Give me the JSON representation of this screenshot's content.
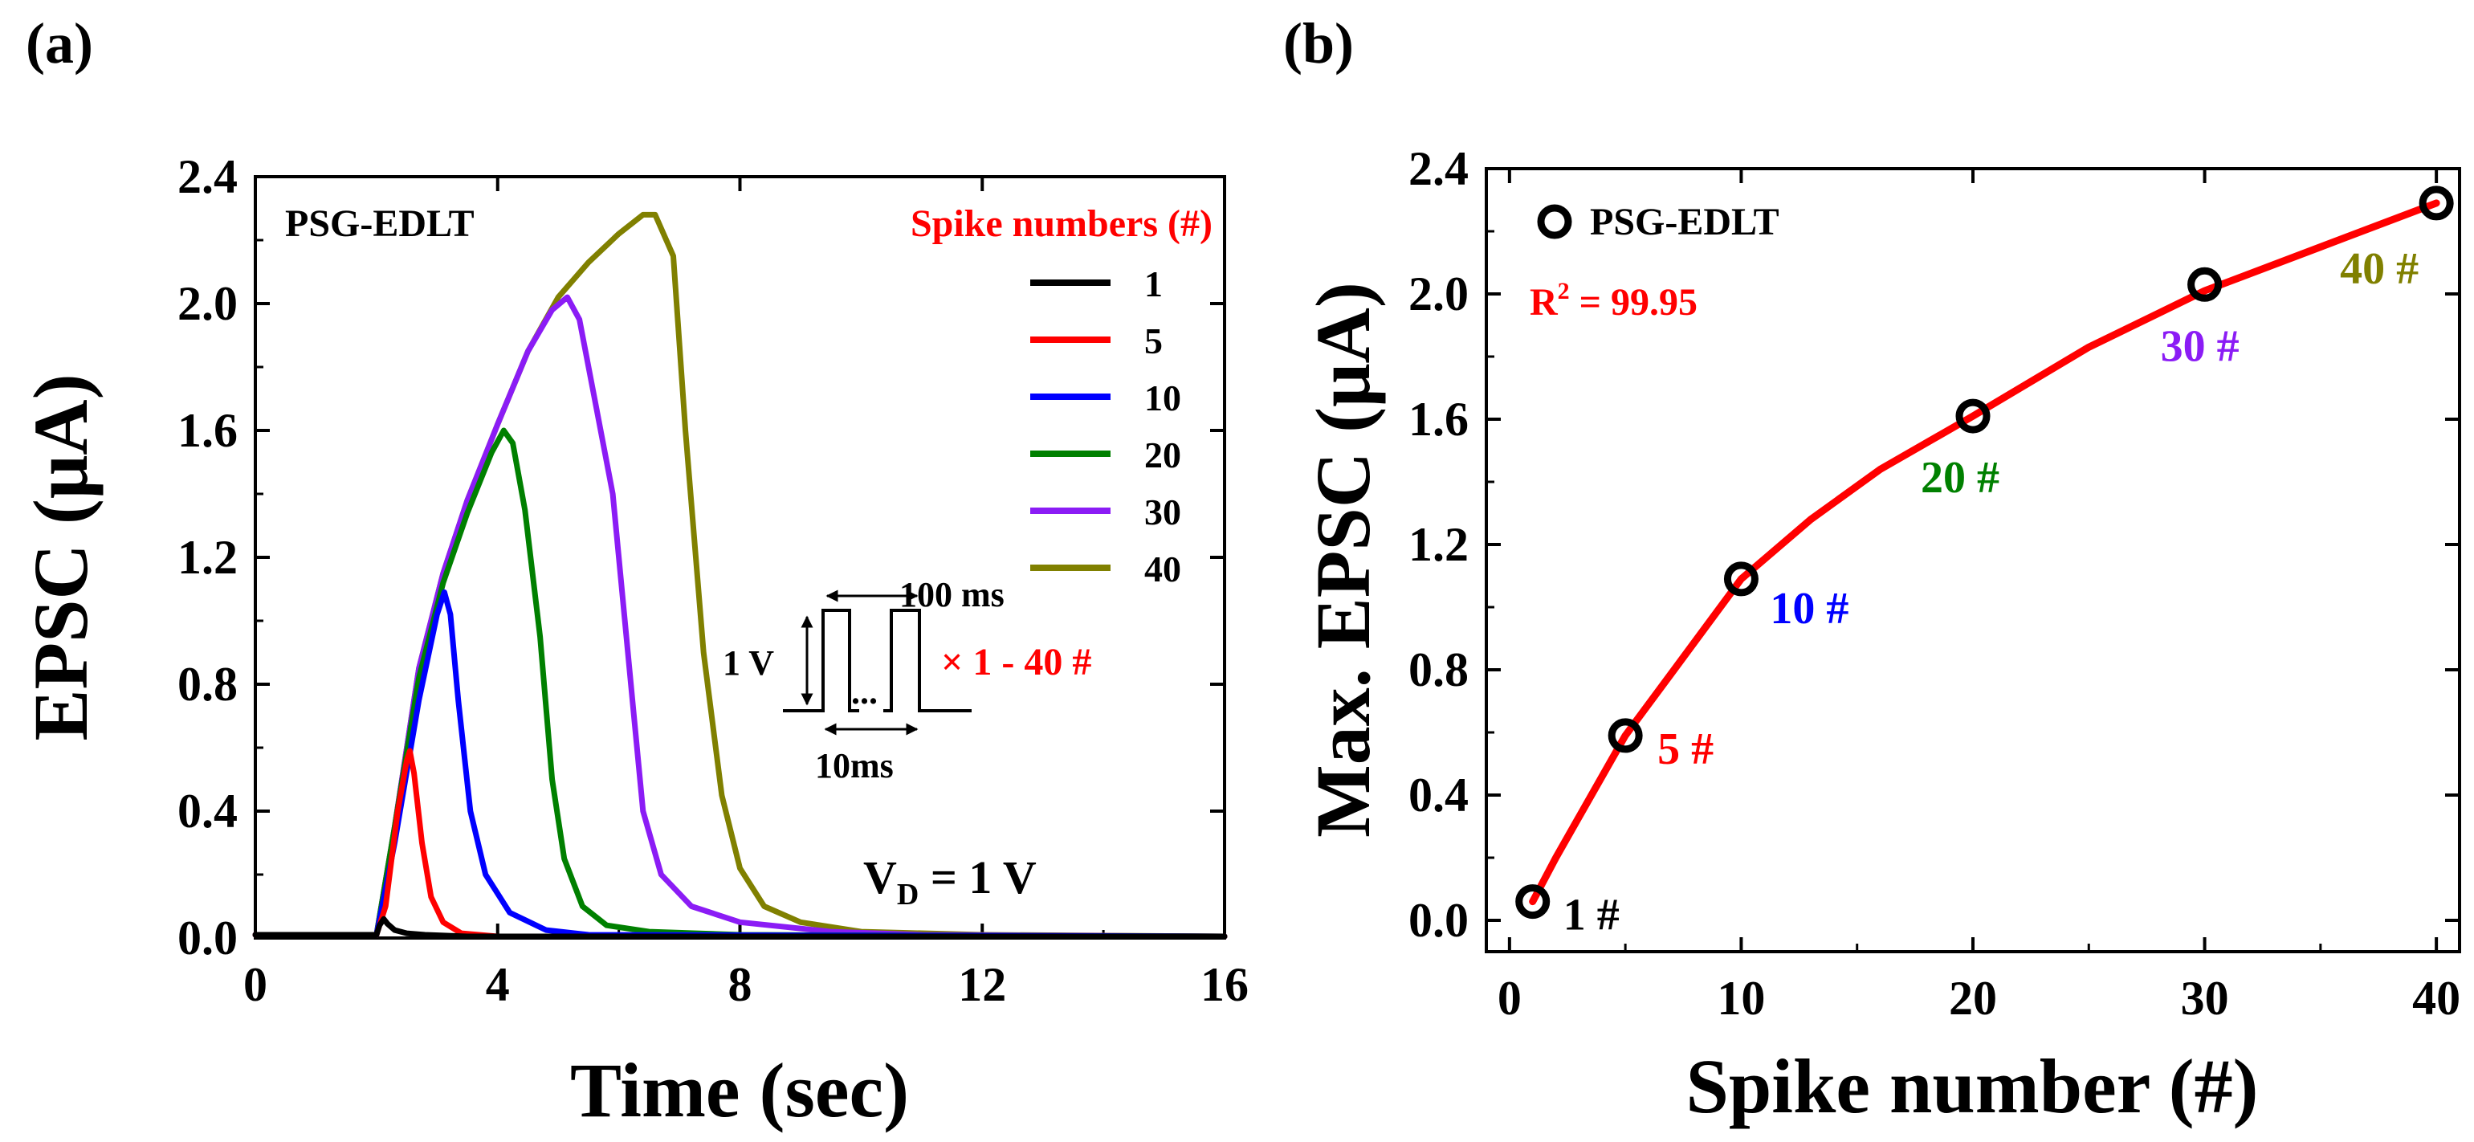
{
  "panels": [
    {
      "label": "(a)"
    },
    {
      "label": "(b)"
    }
  ],
  "colors": {
    "black": "#000000",
    "red": "#ff0000",
    "blue": "#0000ff",
    "green": "#008000",
    "purple": "#8b1cf5",
    "olive": "#808000"
  },
  "inset": {
    "pulse_width": "100 ms",
    "amplitude": "1 V",
    "ellipsis": "...",
    "interval": "10ms",
    "repeat": "× 1 - 40 #"
  },
  "chart_data": [
    {
      "id": "a",
      "type": "line",
      "title": "",
      "xlabel": "Time (sec)",
      "ylabel": "EPSC (μA)",
      "xlim": [
        0,
        16
      ],
      "ylim": [
        0,
        2.4
      ],
      "xticks": [
        0,
        4,
        8,
        12,
        16
      ],
      "xtick_labels": [
        "0",
        "4",
        "8",
        "12",
        "16"
      ],
      "yticks": [
        0,
        0.4,
        0.8,
        1.2,
        1.6,
        2.0,
        2.4
      ],
      "ytick_labels": [
        "0.0",
        "0.4",
        "0.8",
        "1.2",
        "1.6",
        "2.0",
        "2.4"
      ],
      "grid": false,
      "device_label": "PSG-EDLT",
      "condition_label": {
        "main": "V",
        "sub": "D",
        "rest": " = 1 V"
      },
      "legend_title": "Spike numbers (#)",
      "legend_position": "top-right",
      "series": [
        {
          "name": "1",
          "color": "#000000",
          "x": [
            0,
            2.0,
            2.05,
            2.12,
            2.18,
            2.3,
            2.5,
            2.8,
            3.5,
            16
          ],
          "y": [
            0.01,
            0.01,
            0.04,
            0.06,
            0.045,
            0.025,
            0.015,
            0.01,
            0.005,
            0.005
          ]
        },
        {
          "name": "5",
          "color": "#ff0000",
          "x": [
            0,
            2.0,
            2.15,
            2.35,
            2.5,
            2.55,
            2.62,
            2.75,
            2.9,
            3.1,
            3.4,
            4.0,
            16
          ],
          "y": [
            0.01,
            0.01,
            0.1,
            0.4,
            0.56,
            0.59,
            0.52,
            0.3,
            0.13,
            0.05,
            0.015,
            0.005,
            0.005
          ]
        },
        {
          "name": "10",
          "color": "#0000ff",
          "x": [
            0,
            2.0,
            2.3,
            2.7,
            3.0,
            3.12,
            3.22,
            3.35,
            3.55,
            3.8,
            4.2,
            4.8,
            5.5,
            16
          ],
          "y": [
            0.01,
            0.01,
            0.3,
            0.75,
            1.02,
            1.09,
            1.02,
            0.75,
            0.4,
            0.2,
            0.08,
            0.025,
            0.01,
            0.005
          ]
        },
        {
          "name": "20",
          "color": "#008000",
          "x": [
            0,
            2.0,
            2.3,
            2.7,
            3.1,
            3.5,
            3.9,
            4.1,
            4.25,
            4.45,
            4.7,
            4.9,
            5.1,
            5.4,
            5.8,
            6.5,
            8.0,
            16
          ],
          "y": [
            0.01,
            0.01,
            0.35,
            0.82,
            1.12,
            1.34,
            1.53,
            1.6,
            1.56,
            1.35,
            0.95,
            0.5,
            0.25,
            0.1,
            0.04,
            0.02,
            0.01,
            0.005
          ]
        },
        {
          "name": "30",
          "color": "#8b1cf5",
          "x": [
            0,
            2.0,
            2.3,
            2.7,
            3.1,
            3.5,
            4.0,
            4.5,
            4.9,
            5.15,
            5.35,
            5.6,
            5.9,
            6.2,
            6.4,
            6.7,
            7.2,
            8.0,
            9.5,
            11.0,
            16
          ],
          "y": [
            0.01,
            0.01,
            0.35,
            0.85,
            1.15,
            1.38,
            1.62,
            1.85,
            1.98,
            2.02,
            1.95,
            1.7,
            1.4,
            0.8,
            0.4,
            0.2,
            0.1,
            0.05,
            0.02,
            0.01,
            0.005
          ]
        },
        {
          "name": "40",
          "color": "#808000",
          "x": [
            0,
            2.0,
            2.3,
            2.7,
            3.1,
            3.5,
            4.0,
            4.5,
            5.0,
            5.5,
            6.0,
            6.4,
            6.6,
            6.9,
            7.1,
            7.4,
            7.7,
            8.0,
            8.4,
            9.0,
            10.0,
            12.0,
            16
          ],
          "y": [
            0.01,
            0.01,
            0.35,
            0.85,
            1.15,
            1.38,
            1.62,
            1.85,
            2.02,
            2.13,
            2.22,
            2.28,
            2.28,
            2.15,
            1.6,
            0.9,
            0.45,
            0.22,
            0.1,
            0.05,
            0.02,
            0.01,
            0.005
          ]
        }
      ]
    },
    {
      "id": "b",
      "type": "scatter",
      "title": "",
      "xlabel": "Spike number (#)",
      "ylabel": "Max. EPSC (μA)",
      "xlim": [
        -1,
        41
      ],
      "ylim": [
        -0.1,
        2.4
      ],
      "xticks": [
        0,
        10,
        20,
        30,
        40
      ],
      "xtick_labels": [
        "0",
        "10",
        "20",
        "30",
        "40"
      ],
      "yticks": [
        0,
        0.4,
        0.8,
        1.2,
        1.6,
        2.0,
        2.4
      ],
      "ytick_labels": [
        "0.0",
        "0.4",
        "0.8",
        "1.2",
        "1.6",
        "2.0",
        "2.4"
      ],
      "grid": false,
      "legend_label": "PSG-EDLT",
      "legend_position": "top-left",
      "fit_label": {
        "prefix": "R",
        "sup": "2",
        "rest": " = 99.95"
      },
      "points": [
        {
          "x": 1,
          "y": 0.06,
          "label": "1 #",
          "color": "#000000"
        },
        {
          "x": 5,
          "y": 0.59,
          "label": "5 #",
          "color": "#ff0000"
        },
        {
          "x": 10,
          "y": 1.09,
          "label": "10 #",
          "color": "#0000ff"
        },
        {
          "x": 20,
          "y": 1.61,
          "label": "20 #",
          "color": "#008000"
        },
        {
          "x": 30,
          "y": 2.03,
          "label": "30 #",
          "color": "#8b1cf5"
        },
        {
          "x": 40,
          "y": 2.29,
          "label": "40 #",
          "color": "#808000"
        }
      ],
      "fit": {
        "color": "#ff0000",
        "x": [
          1,
          2,
          3,
          5,
          7,
          10,
          13,
          16,
          20,
          25,
          30,
          35,
          40
        ],
        "y": [
          0.06,
          0.2,
          0.33,
          0.59,
          0.79,
          1.09,
          1.28,
          1.44,
          1.61,
          1.83,
          2.01,
          2.15,
          2.29
        ]
      }
    }
  ]
}
